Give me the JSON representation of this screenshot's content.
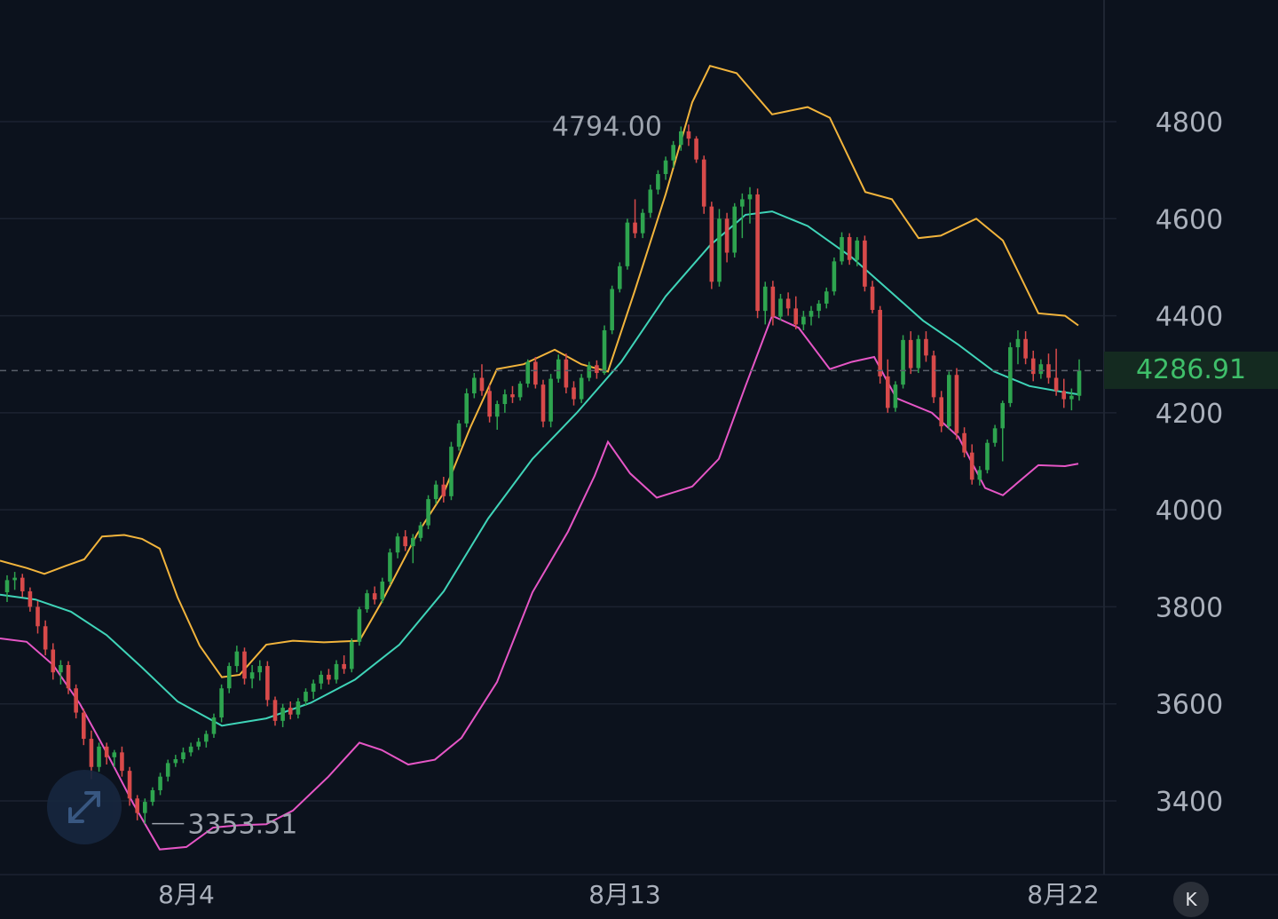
{
  "chart_data": {
    "type": "candlestick",
    "y_axis": {
      "ticks": [
        3400,
        3600,
        3800,
        4000,
        4200,
        4400,
        4600,
        4800
      ],
      "range": [
        3250,
        4980
      ]
    },
    "x_axis": {
      "labels": [
        "8月4",
        "8月13",
        "8月22"
      ]
    },
    "current_price": "4286.91",
    "high_label": "4794.00",
    "low_label": "3353.51",
    "grid": true,
    "ohlc": [
      [
        3830,
        3865,
        3810,
        3855
      ],
      [
        3855,
        3872,
        3835,
        3860
      ],
      [
        3860,
        3868,
        3820,
        3832
      ],
      [
        3832,
        3840,
        3790,
        3800
      ],
      [
        3800,
        3812,
        3745,
        3760
      ],
      [
        3760,
        3772,
        3700,
        3712
      ],
      [
        3712,
        3725,
        3650,
        3665
      ],
      [
        3665,
        3690,
        3640,
        3680
      ],
      [
        3680,
        3688,
        3620,
        3632
      ],
      [
        3632,
        3640,
        3570,
        3582
      ],
      [
        3582,
        3590,
        3515,
        3528
      ],
      [
        3528,
        3545,
        3445,
        3470
      ],
      [
        3470,
        3520,
        3460,
        3512
      ],
      [
        3512,
        3520,
        3475,
        3490
      ],
      [
        3490,
        3505,
        3470,
        3500
      ],
      [
        3500,
        3512,
        3450,
        3462
      ],
      [
        3462,
        3470,
        3390,
        3405
      ],
      [
        3405,
        3412,
        3360,
        3375
      ],
      [
        3375,
        3405,
        3353,
        3398
      ],
      [
        3398,
        3428,
        3390,
        3422
      ],
      [
        3422,
        3458,
        3412,
        3450
      ],
      [
        3450,
        3485,
        3440,
        3478
      ],
      [
        3478,
        3495,
        3470,
        3486
      ],
      [
        3486,
        3510,
        3478,
        3500
      ],
      [
        3500,
        3520,
        3492,
        3512
      ],
      [
        3512,
        3530,
        3505,
        3522
      ],
      [
        3522,
        3545,
        3510,
        3538
      ],
      [
        3538,
        3580,
        3530,
        3572
      ],
      [
        3572,
        3640,
        3562,
        3632
      ],
      [
        3632,
        3685,
        3622,
        3678
      ],
      [
        3678,
        3720,
        3665,
        3708
      ],
      [
        3708,
        3716,
        3640,
        3652
      ],
      [
        3652,
        3680,
        3632,
        3665
      ],
      [
        3665,
        3690,
        3648,
        3678
      ],
      [
        3678,
        3688,
        3595,
        3608
      ],
      [
        3608,
        3615,
        3555,
        3565
      ],
      [
        3565,
        3600,
        3552,
        3592
      ],
      [
        3592,
        3605,
        3568,
        3578
      ],
      [
        3578,
        3612,
        3570,
        3605
      ],
      [
        3605,
        3632,
        3596,
        3625
      ],
      [
        3625,
        3650,
        3610,
        3642
      ],
      [
        3642,
        3668,
        3630,
        3660
      ],
      [
        3660,
        3672,
        3640,
        3650
      ],
      [
        3650,
        3690,
        3642,
        3682
      ],
      [
        3682,
        3700,
        3662,
        3672
      ],
      [
        3672,
        3735,
        3665,
        3728
      ],
      [
        3728,
        3800,
        3720,
        3795
      ],
      [
        3795,
        3835,
        3788,
        3828
      ],
      [
        3828,
        3842,
        3805,
        3815
      ],
      [
        3815,
        3860,
        3808,
        3852
      ],
      [
        3852,
        3920,
        3845,
        3912
      ],
      [
        3912,
        3952,
        3900,
        3945
      ],
      [
        3945,
        3958,
        3915,
        3925
      ],
      [
        3925,
        3950,
        3890,
        3942
      ],
      [
        3942,
        3975,
        3935,
        3968
      ],
      [
        3968,
        4030,
        3960,
        4022
      ],
      [
        4022,
        4060,
        4012,
        4052
      ],
      [
        4052,
        4068,
        4015,
        4028
      ],
      [
        4028,
        4140,
        4020,
        4130
      ],
      [
        4130,
        4185,
        4122,
        4178
      ],
      [
        4178,
        4250,
        4170,
        4240
      ],
      [
        4240,
        4282,
        4230,
        4272
      ],
      [
        4272,
        4300,
        4235,
        4245
      ],
      [
        4245,
        4258,
        4180,
        4192
      ],
      [
        4192,
        4225,
        4165,
        4218
      ],
      [
        4218,
        4248,
        4200,
        4238
      ],
      [
        4238,
        4255,
        4220,
        4232
      ],
      [
        4232,
        4265,
        4225,
        4260
      ],
      [
        4260,
        4310,
        4252,
        4305
      ],
      [
        4305,
        4315,
        4250,
        4258
      ],
      [
        4258,
        4268,
        4170,
        4182
      ],
      [
        4182,
        4280,
        4170,
        4270
      ],
      [
        4270,
        4320,
        4262,
        4310
      ],
      [
        4310,
        4322,
        4240,
        4252
      ],
      [
        4252,
        4265,
        4215,
        4228
      ],
      [
        4228,
        4280,
        4220,
        4272
      ],
      [
        4272,
        4305,
        4265,
        4298
      ],
      [
        4298,
        4308,
        4270,
        4282
      ],
      [
        4282,
        4380,
        4278,
        4370
      ],
      [
        4370,
        4462,
        4362,
        4455
      ],
      [
        4455,
        4510,
        4448,
        4502
      ],
      [
        4502,
        4600,
        4495,
        4592
      ],
      [
        4592,
        4640,
        4560,
        4570
      ],
      [
        4570,
        4620,
        4560,
        4612
      ],
      [
        4612,
        4670,
        4602,
        4660
      ],
      [
        4660,
        4700,
        4650,
        4692
      ],
      [
        4692,
        4728,
        4680,
        4720
      ],
      [
        4720,
        4760,
        4705,
        4752
      ],
      [
        4752,
        4790,
        4740,
        4780
      ],
      [
        4780,
        4794,
        4750,
        4765
      ],
      [
        4765,
        4770,
        4715,
        4722
      ],
      [
        4722,
        4730,
        4610,
        4625
      ],
      [
        4625,
        4635,
        4455,
        4470
      ],
      [
        4470,
        4620,
        4460,
        4600
      ],
      [
        4600,
        4612,
        4510,
        4530
      ],
      [
        4530,
        4632,
        4520,
        4625
      ],
      [
        4625,
        4652,
        4560,
        4640
      ],
      [
        4640,
        4665,
        4590,
        4650
      ],
      [
        4650,
        4662,
        4395,
        4410
      ],
      [
        4410,
        4470,
        4382,
        4460
      ],
      [
        4460,
        4472,
        4380,
        4398
      ],
      [
        4398,
        4445,
        4390,
        4435
      ],
      [
        4435,
        4448,
        4400,
        4415
      ],
      [
        4415,
        4440,
        4372,
        4382
      ],
      [
        4382,
        4410,
        4370,
        4398
      ],
      [
        4398,
        4420,
        4380,
        4410
      ],
      [
        4410,
        4432,
        4395,
        4425
      ],
      [
        4425,
        4458,
        4415,
        4450
      ],
      [
        4450,
        4520,
        4442,
        4512
      ],
      [
        4512,
        4572,
        4505,
        4562
      ],
      [
        4562,
        4570,
        4505,
        4515
      ],
      [
        4515,
        4562,
        4502,
        4555
      ],
      [
        4555,
        4565,
        4450,
        4460
      ],
      [
        4460,
        4472,
        4405,
        4412
      ],
      [
        4412,
        4420,
        4260,
        4275
      ],
      [
        4275,
        4310,
        4200,
        4210
      ],
      [
        4210,
        4265,
        4202,
        4258
      ],
      [
        4258,
        4360,
        4250,
        4350
      ],
      [
        4350,
        4368,
        4280,
        4292
      ],
      [
        4292,
        4360,
        4282,
        4352
      ],
      [
        4352,
        4368,
        4305,
        4318
      ],
      [
        4318,
        4328,
        4220,
        4232
      ],
      [
        4232,
        4245,
        4160,
        4172
      ],
      [
        4172,
        4285,
        4165,
        4278
      ],
      [
        4278,
        4292,
        4145,
        4158
      ],
      [
        4158,
        4170,
        4108,
        4118
      ],
      [
        4118,
        4135,
        4052,
        4062
      ],
      [
        4062,
        4090,
        4050,
        4082
      ],
      [
        4082,
        4145,
        4075,
        4138
      ],
      [
        4138,
        4175,
        4130,
        4168
      ],
      [
        4168,
        4225,
        4100,
        4220
      ],
      [
        4220,
        4345,
        4212,
        4335
      ],
      [
        4335,
        4370,
        4300,
        4352
      ],
      [
        4352,
        4368,
        4300,
        4312
      ],
      [
        4312,
        4328,
        4265,
        4280
      ],
      [
        4280,
        4310,
        4270,
        4300
      ],
      [
        4300,
        4322,
        4260,
        4272
      ],
      [
        4272,
        4332,
        4235,
        4245
      ],
      [
        4245,
        4270,
        4210,
        4228
      ],
      [
        4228,
        4250,
        4205,
        4235
      ],
      [
        4235,
        4310,
        4225,
        4287
      ]
    ],
    "bollinger_upper": [
      [
        0,
        3895
      ],
      [
        30,
        3880
      ],
      [
        50,
        3868
      ],
      [
        75,
        3885
      ],
      [
        95,
        3898
      ],
      [
        115,
        3945
      ],
      [
        140,
        3948
      ],
      [
        160,
        3940
      ],
      [
        180,
        3920
      ],
      [
        200,
        3820
      ],
      [
        225,
        3720
      ],
      [
        250,
        3655
      ],
      [
        270,
        3660
      ],
      [
        300,
        3722
      ],
      [
        330,
        3730
      ],
      [
        365,
        3727
      ],
      [
        405,
        3730
      ],
      [
        430,
        3810
      ],
      [
        470,
        3950
      ],
      [
        500,
        4035
      ],
      [
        530,
        4170
      ],
      [
        560,
        4290
      ],
      [
        590,
        4300
      ],
      [
        625,
        4330
      ],
      [
        655,
        4300
      ],
      [
        685,
        4285
      ],
      [
        715,
        4450
      ],
      [
        750,
        4650
      ],
      [
        780,
        4840
      ],
      [
        800,
        4915
      ],
      [
        830,
        4900
      ],
      [
        870,
        4815
      ],
      [
        910,
        4830
      ],
      [
        935,
        4808
      ],
      [
        975,
        4655
      ],
      [
        1005,
        4640
      ],
      [
        1035,
        4560
      ],
      [
        1060,
        4565
      ],
      [
        1100,
        4600
      ],
      [
        1130,
        4555
      ],
      [
        1170,
        4405
      ],
      [
        1200,
        4400
      ],
      [
        1215,
        4380
      ]
    ],
    "bollinger_mid": [
      [
        0,
        3825
      ],
      [
        40,
        3815
      ],
      [
        80,
        3790
      ],
      [
        120,
        3742
      ],
      [
        160,
        3675
      ],
      [
        200,
        3605
      ],
      [
        250,
        3555
      ],
      [
        300,
        3570
      ],
      [
        350,
        3602
      ],
      [
        400,
        3650
      ],
      [
        450,
        3722
      ],
      [
        500,
        3832
      ],
      [
        550,
        3982
      ],
      [
        600,
        4105
      ],
      [
        650,
        4200
      ],
      [
        700,
        4305
      ],
      [
        750,
        4440
      ],
      [
        800,
        4545
      ],
      [
        840,
        4608
      ],
      [
        870,
        4615
      ],
      [
        910,
        4585
      ],
      [
        960,
        4520
      ],
      [
        1000,
        4455
      ],
      [
        1040,
        4390
      ],
      [
        1080,
        4340
      ],
      [
        1120,
        4285
      ],
      [
        1160,
        4255
      ],
      [
        1200,
        4242
      ],
      [
        1215,
        4238
      ]
    ],
    "bollinger_lower": [
      [
        0,
        3735
      ],
      [
        30,
        3728
      ],
      [
        60,
        3680
      ],
      [
        90,
        3600
      ],
      [
        120,
        3500
      ],
      [
        150,
        3395
      ],
      [
        180,
        3300
      ],
      [
        210,
        3305
      ],
      [
        240,
        3345
      ],
      [
        270,
        3350
      ],
      [
        300,
        3352
      ],
      [
        330,
        3380
      ],
      [
        370,
        3450
      ],
      [
        405,
        3520
      ],
      [
        430,
        3505
      ],
      [
        460,
        3475
      ],
      [
        490,
        3485
      ],
      [
        520,
        3530
      ],
      [
        560,
        3645
      ],
      [
        600,
        3830
      ],
      [
        640,
        3955
      ],
      [
        670,
        4070
      ],
      [
        685,
        4140
      ],
      [
        710,
        4075
      ],
      [
        740,
        4025
      ],
      [
        780,
        4048
      ],
      [
        810,
        4105
      ],
      [
        840,
        4255
      ],
      [
        870,
        4400
      ],
      [
        900,
        4375
      ],
      [
        935,
        4290
      ],
      [
        960,
        4305
      ],
      [
        985,
        4315
      ],
      [
        1010,
        4230
      ],
      [
        1050,
        4200
      ],
      [
        1080,
        4150
      ],
      [
        1110,
        4045
      ],
      [
        1130,
        4030
      ],
      [
        1170,
        4092
      ],
      [
        1200,
        4090
      ],
      [
        1215,
        4095
      ]
    ]
  },
  "controls": {
    "expand_icon": "expand-arrows-icon",
    "rewind_icon": "skip-to-start-icon",
    "rewind_glyph": "K"
  }
}
